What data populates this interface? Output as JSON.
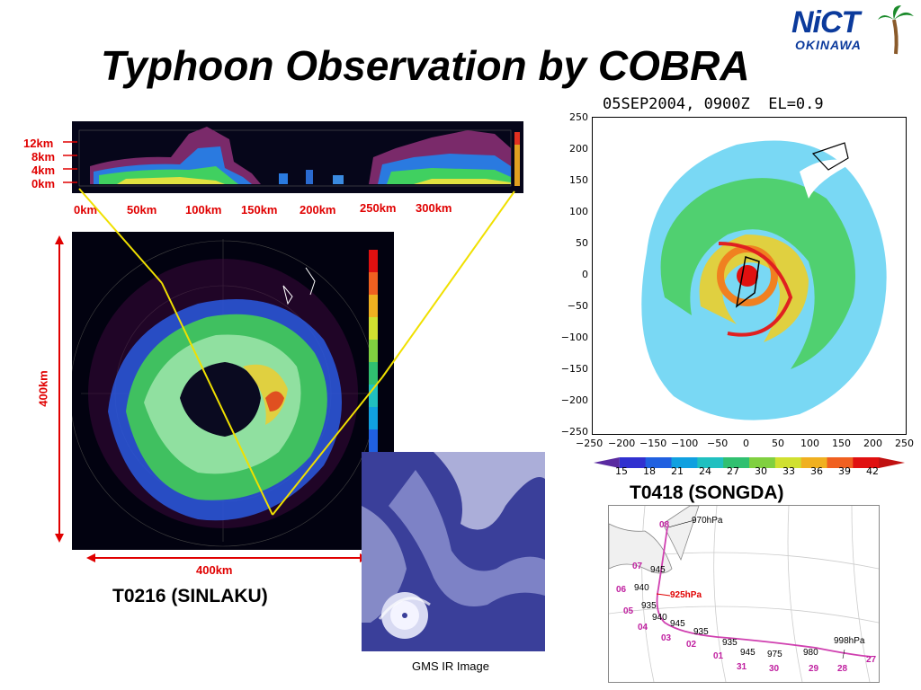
{
  "title": "Typhoon Observation by COBRA",
  "logo": {
    "text": "NiCT",
    "subtitle": "OKINAWA",
    "icon": "palm-tree-icon"
  },
  "cross_section": {
    "height_labels": [
      "12km",
      "8km",
      "4km",
      "0km"
    ],
    "range_labels": [
      "0km",
      "50km",
      "100km",
      "150km",
      "200km",
      "250km",
      "300km"
    ]
  },
  "left_ppi": {
    "width_label": "400km",
    "height_label": "400km",
    "caption": "T0216 (SINLAKU)"
  },
  "right_ppi": {
    "header": "05SEP2004, 0900Z  EL=0.9",
    "y_ticks": [
      "250",
      "200",
      "150",
      "100",
      "50",
      "0",
      "−50",
      "−100",
      "−150",
      "−200",
      "−250"
    ],
    "x_ticks": [
      "−250",
      "−200",
      "−150",
      "−100",
      "−50",
      "0",
      "50",
      "100",
      "150",
      "200",
      "250"
    ],
    "colorbar_ticks": [
      "15",
      "18",
      "21",
      "24",
      "27",
      "30",
      "33",
      "36",
      "39",
      "42"
    ],
    "colorbar_colors": [
      "#3030d0",
      "#2060e0",
      "#10a0e0",
      "#20c0c0",
      "#30c070",
      "#80d040",
      "#d0e030",
      "#f0b020",
      "#f06020",
      "#e01010"
    ],
    "caption": "T0418 (SONGDA)"
  },
  "satellite": {
    "caption": "GMS IR Image"
  },
  "track": {
    "days": [
      "08",
      "07",
      "06",
      "05",
      "04",
      "03",
      "02",
      "01",
      "31",
      "30",
      "29",
      "28",
      "27"
    ],
    "pressures": [
      "970hPa",
      "945",
      "940",
      "935",
      "940",
      "945",
      "935",
      "935",
      "945",
      "975",
      "980",
      "998hPa"
    ],
    "highlight_pressure": "925hPa"
  }
}
